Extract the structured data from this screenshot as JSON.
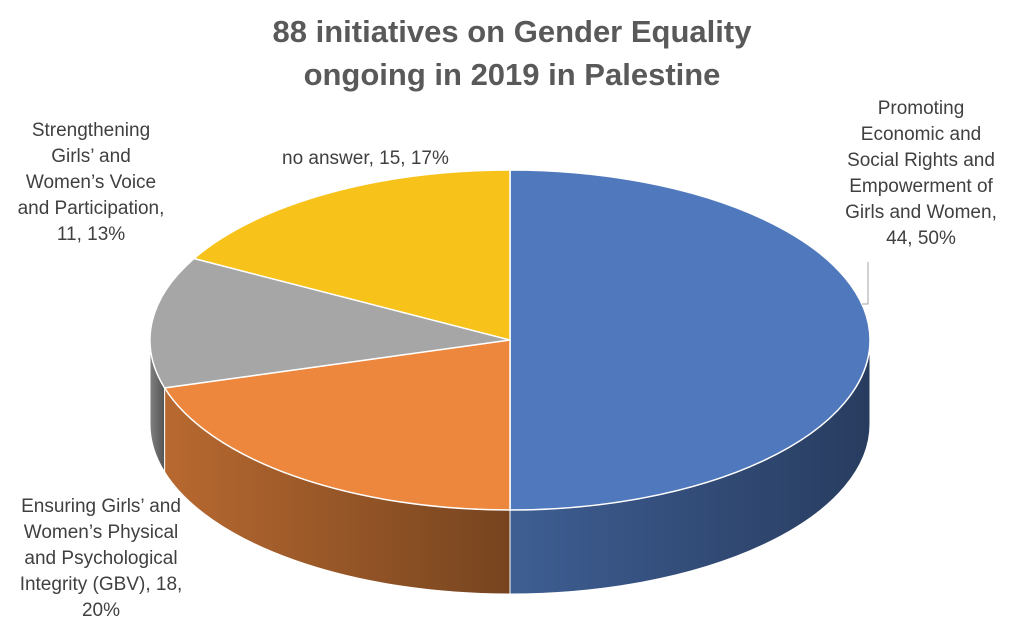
{
  "title": [
    "88 initiatives on Gender Equality",
    "ongoing in 2019 in Palestine"
  ],
  "chart_data": {
    "type": "pie",
    "title": "88 initiatives on Gender Equality ongoing in 2019 in Palestine",
    "total": 88,
    "slices": [
      {
        "label": "Promoting Economic and Social Rights and Empowerment of Girls and Women",
        "value": 44,
        "percent": 50,
        "color": "#4F78BD",
        "label_lines": [
          "Promoting",
          "Economic and",
          "Social Rights and",
          "Empowerment of",
          "Girls and Women,",
          "44, 50%"
        ]
      },
      {
        "label": "Ensuring Girls’ and Women’s Physical and Psychological Integrity (GBV)",
        "value": 18,
        "percent": 20,
        "color": "#EC873D",
        "label_lines": [
          "Ensuring Girls’ and",
          "Women’s Physical",
          "and Psychological",
          "Integrity (GBV), 18,",
          "20%"
        ]
      },
      {
        "label": "Strengthening Girls’ and Women’s Voice and Participation",
        "value": 11,
        "percent": 13,
        "color": "#A6A6A6",
        "label_lines": [
          "Strengthening",
          "Girls’ and",
          "Women’s Voice",
          "and Participation,",
          "11, 13%"
        ]
      },
      {
        "label": "no answer",
        "value": 15,
        "percent": 17,
        "color": "#F7C21A",
        "label_lines": [
          "no answer, 15, 17%"
        ]
      }
    ],
    "style": "3d-pie",
    "legend": "none"
  }
}
